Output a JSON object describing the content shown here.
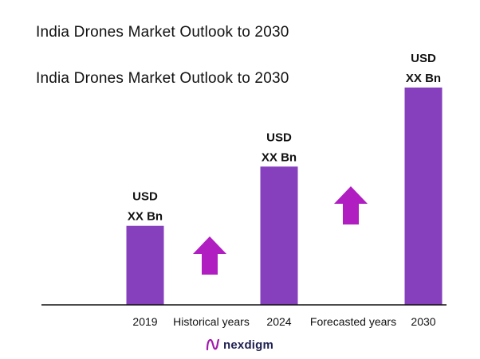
{
  "titles": [
    "India Drones Market Outlook to 2030",
    "India Drones Market Outlook to 2030"
  ],
  "chart_data": {
    "type": "bar",
    "categories": [
      "2019",
      "2024",
      "2030"
    ],
    "values": [
      1.0,
      1.75,
      2.75
    ],
    "value_labels": [
      [
        "USD",
        "XX Bn"
      ],
      [
        "USD",
        "XX Bn"
      ],
      [
        "USD",
        "XX Bn"
      ]
    ],
    "annotations": [
      "Historical years",
      "Forecasted years"
    ],
    "title": "",
    "xlabel": "",
    "ylabel": "",
    "ylim": [
      0,
      2.8
    ],
    "grid": false,
    "legend": "none",
    "bar_color": "#8640be",
    "arrow_color": "#b01ec2"
  },
  "logo": {
    "text": "nexdigm",
    "icon": "nexdigm-logo-icon"
  }
}
